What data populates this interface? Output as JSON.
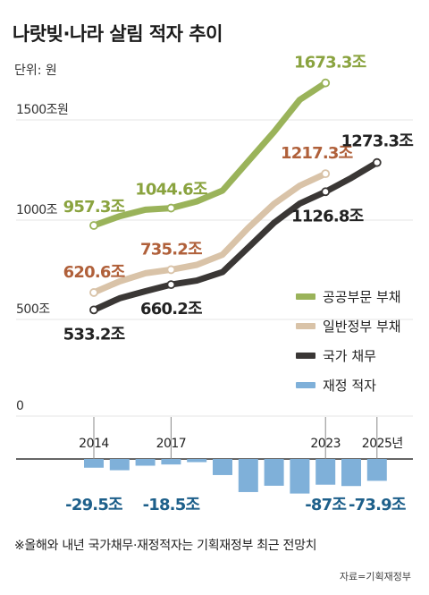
{
  "title": "나랏빚·나라 살림 적자 추이",
  "unit_label": "단위: 원",
  "note": "※올해와 내년 국가채무·재정적자는 기획재정부 최근 전망치",
  "source": "자료=기획재정부",
  "colors": {
    "public_debt": "#9ab35a",
    "general_gov_debt": "#d9c3a8",
    "national_debt": "#3a3735",
    "fiscal_deficit": "#7fb0d9",
    "label_green": "#8aa33f",
    "label_brown": "#b0603a",
    "label_dark": "#222222",
    "label_blue": "#1d5f8a"
  },
  "chart_data": {
    "type": "line",
    "x": [
      2014,
      2015,
      2016,
      2017,
      2018,
      2019,
      2020,
      2021,
      2022,
      2023,
      2024,
      2025
    ],
    "x_tick_labels": [
      {
        "x": 2014,
        "label": "2014"
      },
      {
        "x": 2017,
        "label": "2017"
      },
      {
        "x": 2023,
        "label": "2023"
      },
      {
        "x": 2025,
        "label": "2025년"
      }
    ],
    "y_tick_labels": [
      {
        "value": 0,
        "label": "0"
      },
      {
        "value": 500,
        "label": "500조"
      },
      {
        "value": 1000,
        "label": "1000조"
      },
      {
        "value": 1500,
        "label": "1500조원"
      }
    ],
    "ylim": [
      0,
      1700
    ],
    "deficit_ylim": [
      -100,
      0
    ],
    "series": [
      {
        "key": "public_debt",
        "name": "공공부문 부채",
        "x": [
          2014,
          2015,
          2016,
          2017,
          2018,
          2019,
          2020,
          2021,
          2022,
          2023
        ],
        "values": [
          957.3,
          1003.5,
          1036.6,
          1044.6,
          1078.0,
          1132.6,
          1280.0,
          1427.3,
          1588.7,
          1673.3
        ]
      },
      {
        "key": "general_gov_debt",
        "name": "일반정부 부채",
        "x": [
          2014,
          2015,
          2016,
          2017,
          2018,
          2019,
          2020,
          2021,
          2022,
          2023
        ],
        "values": [
          620.6,
          676.2,
          717.5,
          735.2,
          759.7,
          810.7,
          945.1,
          1066.2,
          1157.2,
          1217.3
        ]
      },
      {
        "key": "national_debt",
        "name": "국가 채무",
        "x": [
          2014,
          2015,
          2016,
          2017,
          2018,
          2019,
          2020,
          2021,
          2022,
          2023,
          2024,
          2025
        ],
        "values": [
          533.2,
          591.5,
          626.9,
          660.2,
          680.5,
          723.2,
          846.6,
          970.7,
          1067.4,
          1126.8,
          1195.8,
          1273.3
        ]
      }
    ],
    "deficit": {
      "key": "fiscal_deficit",
      "name": "재정 적자",
      "x": [
        2014,
        2015,
        2016,
        2017,
        2018,
        2019,
        2020,
        2021,
        2022,
        2023,
        2024,
        2025
      ],
      "values": [
        -29.5,
        -38.0,
        -22.7,
        -18.5,
        -10.6,
        -54.4,
        -112.0,
        -90.6,
        -117.0,
        -87.0,
        -91.6,
        -73.9
      ]
    },
    "value_labels": [
      {
        "series": "public_debt",
        "x": 2014,
        "text": "957.3조"
      },
      {
        "series": "public_debt",
        "x": 2017,
        "text": "1044.6조"
      },
      {
        "series": "public_debt",
        "x": 2023,
        "text": "1673.3조"
      },
      {
        "series": "general_gov_debt",
        "x": 2014,
        "text": "620.6조"
      },
      {
        "series": "general_gov_debt",
        "x": 2017,
        "text": "735.2조"
      },
      {
        "series": "general_gov_debt",
        "x": 2023,
        "text": "1217.3조"
      },
      {
        "series": "national_debt",
        "x": 2014,
        "text": "533.2조"
      },
      {
        "series": "national_debt",
        "x": 2017,
        "text": "660.2조"
      },
      {
        "series": "national_debt",
        "x": 2023,
        "text": "1126.8조"
      },
      {
        "series": "national_debt",
        "x": 2025,
        "text": "1273.3조"
      },
      {
        "series": "fiscal_deficit",
        "x": 2014,
        "text": "-29.5조"
      },
      {
        "series": "fiscal_deficit",
        "x": 2017,
        "text": "-18.5조"
      },
      {
        "series": "fiscal_deficit",
        "x": 2023,
        "text": "-87조"
      },
      {
        "series": "fiscal_deficit",
        "x": 2025,
        "text": "-73.9조"
      }
    ],
    "legend": [
      {
        "key": "public_debt",
        "label": "공공부문 부채"
      },
      {
        "key": "general_gov_debt",
        "label": "일반정부 부채"
      },
      {
        "key": "national_debt",
        "label": "국가 채무"
      },
      {
        "key": "fiscal_deficit",
        "label": "재정 적자"
      }
    ],
    "legend_position": "right"
  }
}
